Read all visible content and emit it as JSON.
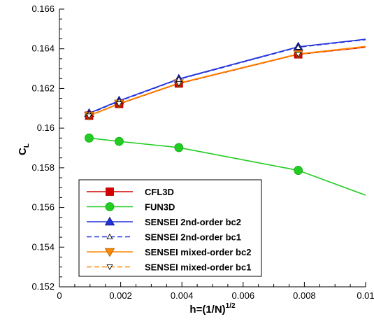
{
  "chart_data": {
    "type": "line",
    "xlabel": "h=(1/N)",
    "xlabel_sup": "1/2",
    "ylabel": "C",
    "ylabel_sub": "L",
    "xlim": [
      0,
      0.01
    ],
    "ylim": [
      0.152,
      0.166
    ],
    "x_ticks": [
      0,
      0.002,
      0.004,
      0.006,
      0.008,
      0.01
    ],
    "x_tick_labels": [
      "0",
      "0.002",
      "0.004",
      "0.006",
      "0.008",
      "0.01"
    ],
    "y_ticks": [
      0.152,
      0.154,
      0.156,
      0.158,
      0.16,
      0.162,
      0.164,
      0.166
    ],
    "y_tick_labels": [
      "0.152",
      "0.154",
      "0.156",
      "0.158",
      "0.16",
      "0.162",
      "0.164",
      "0.166"
    ],
    "grid": false,
    "legend_position": "bottom-left",
    "series": [
      {
        "name": "CFL3D",
        "color": "#d40000",
        "dash": "solid",
        "marker": "square-filled",
        "x": [
          0.00097,
          0.00195,
          0.0039,
          0.0078,
          0.01
        ],
        "y": [
          0.16063,
          0.16122,
          0.16225,
          0.16372,
          0.16408
        ],
        "markers": [
          true,
          true,
          true,
          true,
          false
        ]
      },
      {
        "name": "FUN3D",
        "color": "#22cc22",
        "dash": "solid",
        "marker": "circle-filled",
        "x": [
          0.00097,
          0.00195,
          0.0039,
          0.0078,
          0.01
        ],
        "y": [
          0.1595,
          0.15933,
          0.15902,
          0.15787,
          0.15662
        ],
        "markers": [
          true,
          true,
          true,
          true,
          false
        ]
      },
      {
        "name": "SENSEI 2nd-order bc2",
        "color": "#2233dd",
        "dash": "solid",
        "marker": "triangle-up-filled",
        "x": [
          0.00097,
          0.00195,
          0.0039,
          0.0078,
          0.01
        ],
        "y": [
          0.16075,
          0.16138,
          0.16248,
          0.1641,
          0.16448
        ],
        "markers": [
          true,
          true,
          true,
          true,
          false
        ]
      },
      {
        "name": "SENSEI 2nd-order bc1",
        "color": "#2233dd",
        "dash": "dashed",
        "marker": "triangle-up-small",
        "x": [
          0.00097,
          0.00195,
          0.0039,
          0.0078,
          0.01
        ],
        "y": [
          0.16073,
          0.16136,
          0.16246,
          0.16408,
          0.16446
        ],
        "markers": [
          true,
          true,
          true,
          true,
          false
        ]
      },
      {
        "name": "SENSEI mixed-order bc2",
        "color": "#ff8800",
        "dash": "solid",
        "marker": "triangle-down-filled",
        "x": [
          0.00097,
          0.00195,
          0.0039,
          0.0078,
          0.01
        ],
        "y": [
          0.16063,
          0.16124,
          0.16227,
          0.16374,
          0.16412
        ],
        "markers": [
          true,
          true,
          true,
          true,
          false
        ]
      },
      {
        "name": "SENSEI mixed-order bc1",
        "color": "#ff8800",
        "dash": "dashed",
        "marker": "triangle-down-small",
        "x": [
          0.00097,
          0.00195,
          0.0039,
          0.0078,
          0.01
        ],
        "y": [
          0.16061,
          0.16122,
          0.16225,
          0.16372,
          0.1641
        ],
        "markers": [
          true,
          true,
          true,
          true,
          false
        ]
      }
    ]
  }
}
